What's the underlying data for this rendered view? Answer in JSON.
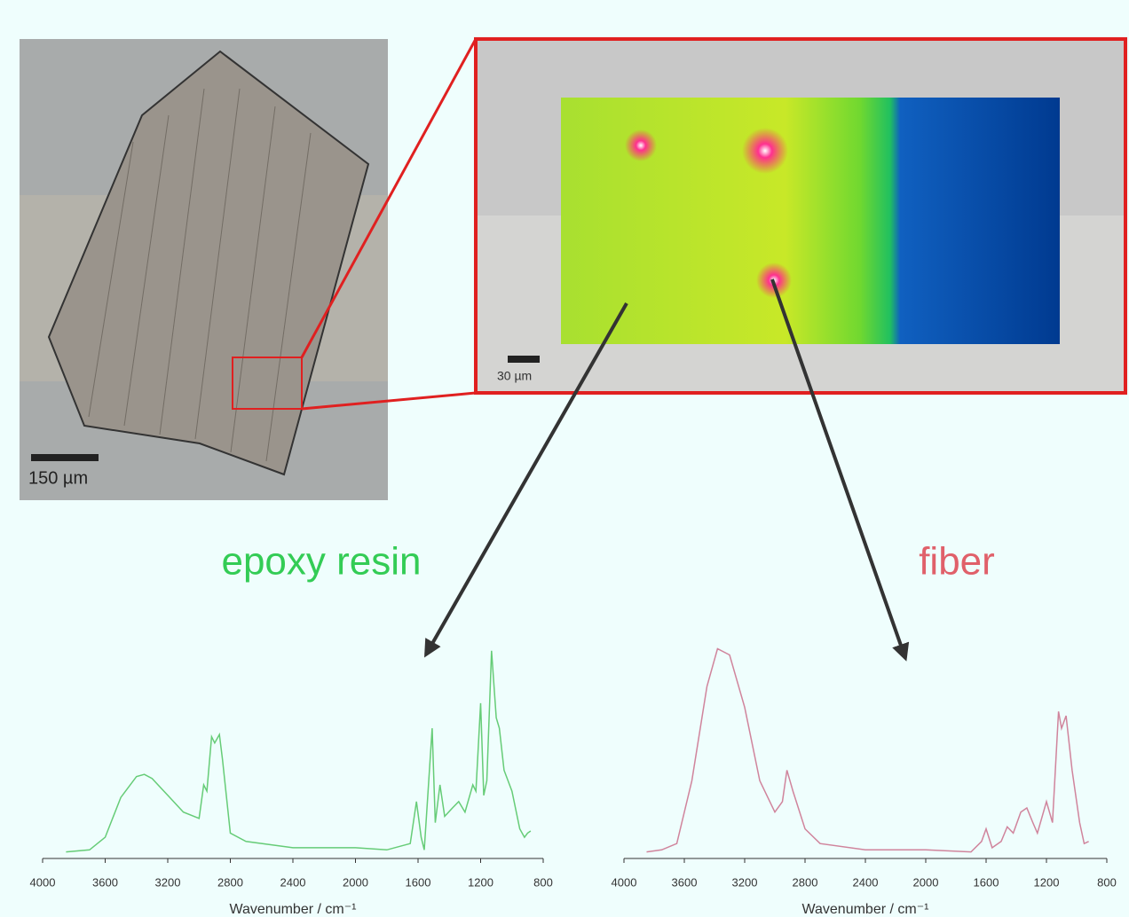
{
  "images": {
    "overview_scale": "150 µm",
    "map_scale": "30 µm"
  },
  "chart_data": [
    {
      "type": "line",
      "title": "epoxy resin",
      "title_color": "#33cc55",
      "color": "#66cc77",
      "x_label": "Wavenumber / cm⁻¹",
      "xlim": [
        4000,
        800
      ],
      "ylim": [
        0,
        1.02
      ],
      "xticks": [
        4000,
        3600,
        3200,
        2800,
        2400,
        2000,
        1600,
        1200,
        800
      ],
      "x": [
        3850,
        3700,
        3600,
        3500,
        3400,
        3350,
        3300,
        3200,
        3100,
        3000,
        2970,
        2950,
        2920,
        2900,
        2870,
        2850,
        2800,
        2700,
        2400,
        2000,
        1800,
        1650,
        1610,
        1580,
        1560,
        1510,
        1490,
        1460,
        1430,
        1380,
        1340,
        1300,
        1250,
        1230,
        1200,
        1180,
        1160,
        1130,
        1100,
        1080,
        1050,
        1000,
        950,
        920,
        900,
        880
      ],
      "values": [
        0.01,
        0.02,
        0.08,
        0.27,
        0.37,
        0.38,
        0.36,
        0.28,
        0.2,
        0.17,
        0.33,
        0.3,
        0.56,
        0.53,
        0.57,
        0.45,
        0.1,
        0.06,
        0.03,
        0.03,
        0.02,
        0.05,
        0.25,
        0.08,
        0.02,
        0.6,
        0.15,
        0.33,
        0.18,
        0.22,
        0.25,
        0.2,
        0.33,
        0.3,
        0.72,
        0.28,
        0.35,
        0.97,
        0.65,
        0.6,
        0.4,
        0.3,
        0.12,
        0.08,
        0.1,
        0.11
      ]
    },
    {
      "type": "line",
      "title": "fiber",
      "title_color": "#e0606a",
      "color": "#d0849c",
      "x_label": "Wavenumber / cm⁻¹",
      "xlim": [
        4000,
        800
      ],
      "ylim": [
        0,
        1.02
      ],
      "xticks": [
        4000,
        3600,
        3200,
        2800,
        2400,
        2000,
        1600,
        1200,
        800
      ],
      "x": [
        3850,
        3750,
        3650,
        3550,
        3450,
        3380,
        3300,
        3200,
        3100,
        3000,
        2950,
        2920,
        2880,
        2800,
        2700,
        2400,
        2000,
        1700,
        1630,
        1600,
        1560,
        1500,
        1460,
        1420,
        1370,
        1330,
        1290,
        1260,
        1200,
        1160,
        1120,
        1100,
        1070,
        1030,
        980,
        950,
        920
      ],
      "values": [
        0.01,
        0.02,
        0.05,
        0.35,
        0.8,
        0.98,
        0.95,
        0.7,
        0.35,
        0.2,
        0.25,
        0.4,
        0.3,
        0.12,
        0.05,
        0.02,
        0.02,
        0.01,
        0.06,
        0.12,
        0.03,
        0.06,
        0.13,
        0.1,
        0.2,
        0.22,
        0.15,
        0.1,
        0.25,
        0.15,
        0.68,
        0.6,
        0.66,
        0.4,
        0.15,
        0.05,
        0.06
      ]
    }
  ]
}
